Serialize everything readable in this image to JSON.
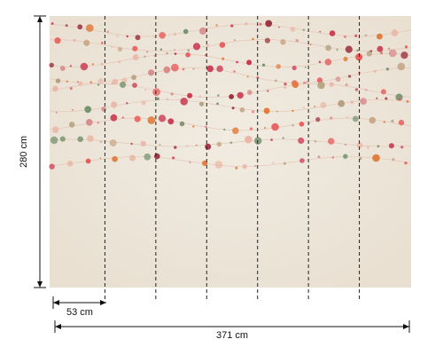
{
  "dimensions": {
    "height_label": "280 cm",
    "panel_width_label": "53 cm",
    "total_width_label": "371 cm"
  },
  "panels": {
    "count": 7
  },
  "colors": {
    "background": "#efe8dc",
    "dimension_line": "#111111",
    "seam_line": "#222222",
    "dot_palette": [
      "#c8364f",
      "#e07a3a",
      "#6f8f6a",
      "#c9a88a",
      "#e9b8a8",
      "#9a2f3f",
      "#d88b8b",
      "#b5a17f",
      "#e85a5a"
    ]
  }
}
